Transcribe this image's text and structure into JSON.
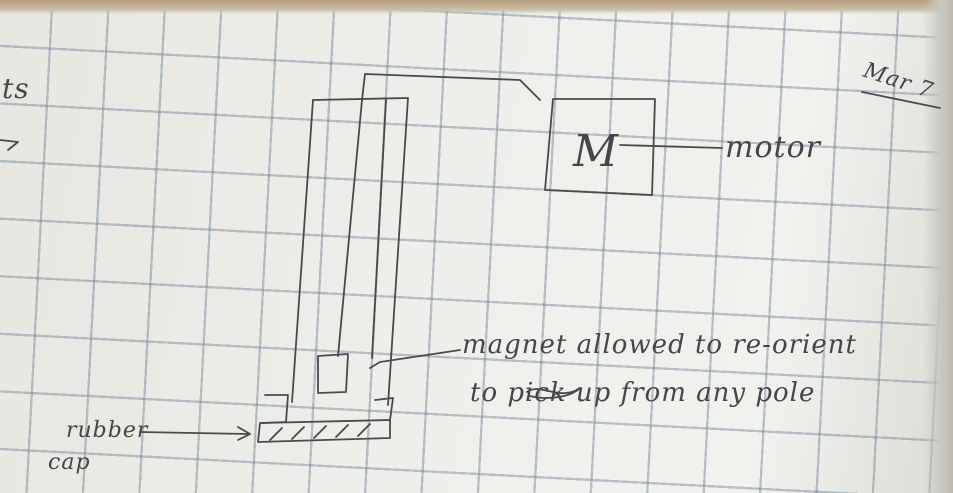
{
  "labels": {
    "motor_box": "M",
    "motor": "motor",
    "magnet_line1": "magnet allowed to re-orient",
    "magnet_line2": "to pick up from any pole",
    "rubber": "rubber",
    "cap": "cap",
    "date": "Mar 7",
    "edge_fragment": "ts"
  },
  "colors": {
    "ink": "#4a4a4e",
    "paper": "#eeeeea",
    "grid": "#6e8296"
  }
}
